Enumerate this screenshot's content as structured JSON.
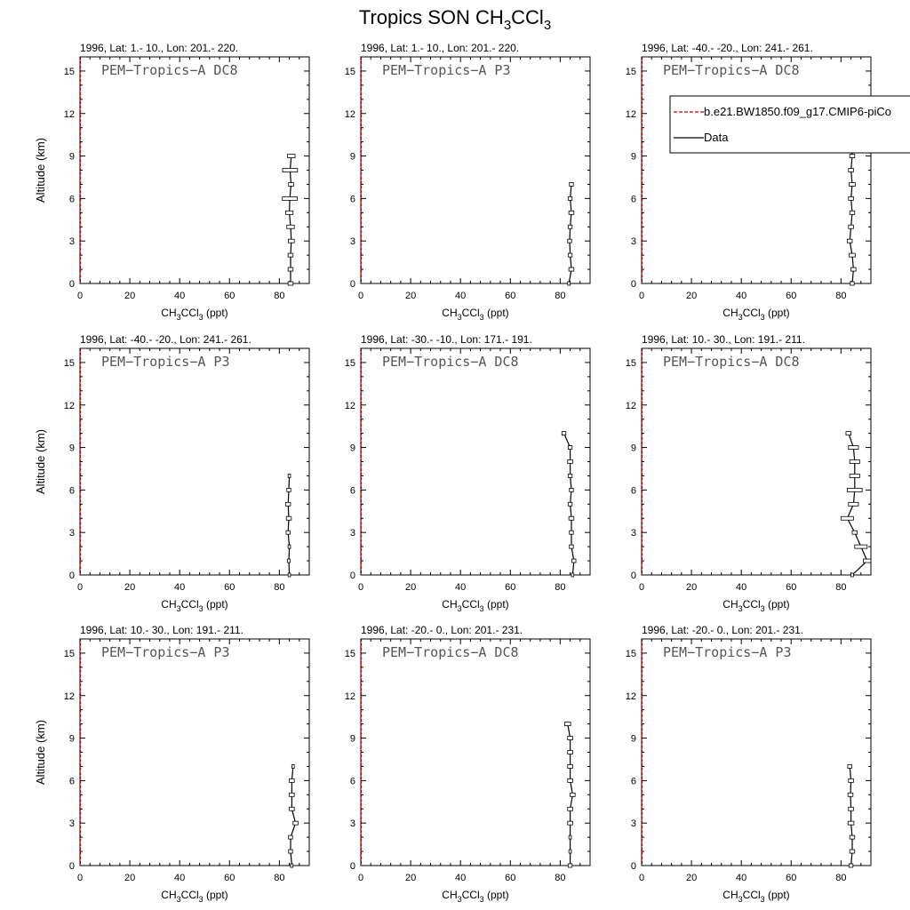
{
  "figure": {
    "title": "Tropics SON CH",
    "title_sub1": "3",
    "title_mid": "CCl",
    "title_sub2": "3"
  },
  "legend": {
    "panel_index": 2,
    "entries": [
      {
        "label": "b.e21.BW1850.f09_g17.CMIP6-piCo",
        "color": "#cc0000",
        "dash": true
      },
      {
        "label": "Data",
        "color": "#000000",
        "dash": false
      }
    ]
  },
  "axis": {
    "ylabel": "Altitude (km)",
    "xlabel_pre": "CH",
    "xlabel_sub1": "3",
    "xlabel_mid": "CCl",
    "xlabel_sub2": "3",
    "xlabel_post": " (ppt)"
  },
  "chart_data": [
    {
      "type": "line",
      "title": "1996, Lat: 1.- 10., Lon: 201.- 220.",
      "campaign": "PEM−Tropics−A DC8",
      "xlim": [
        0,
        92
      ],
      "ylim": [
        0,
        16
      ],
      "xticks": [
        0,
        20,
        40,
        60,
        80
      ],
      "yticks": [
        0,
        3,
        6,
        9,
        12,
        15
      ],
      "series": [
        {
          "name": "Data",
          "x": [
            84.5,
            84.5,
            84.5,
            84.8,
            84.5,
            84.0,
            84.2,
            84.7,
            84.3,
            84.8
          ],
          "y": [
            0,
            1,
            2,
            3,
            4,
            5,
            6,
            7,
            8,
            9
          ],
          "xerr": [
            1.0,
            1.0,
            1.0,
            1.2,
            1.5,
            1.5,
            3.0,
            1.0,
            3.0,
            1.5
          ]
        }
      ]
    },
    {
      "type": "line",
      "title": "1996, Lat: 1.- 10., Lon: 201.- 220.",
      "campaign": "PEM−Tropics−A P3",
      "xlim": [
        0,
        92
      ],
      "ylim": [
        0,
        16
      ],
      "xticks": [
        0,
        20,
        40,
        60,
        80
      ],
      "yticks": [
        0,
        3,
        6,
        9,
        12,
        15
      ],
      "series": [
        {
          "name": "Data",
          "x": [
            83.5,
            84.5,
            84.0,
            83.8,
            84.0,
            84.5,
            84.0,
            84.5
          ],
          "y": [
            0,
            1,
            2,
            3,
            4,
            5,
            6,
            7
          ],
          "xerr": [
            0.5,
            1.0,
            0.8,
            0.8,
            0.8,
            1.0,
            0.8,
            0.8
          ]
        }
      ]
    },
    {
      "type": "line",
      "title": "1996, Lat: -40.- -20., Lon: 241.- 261.",
      "campaign": "PEM−Tropics−A DC8",
      "xlim": [
        0,
        92
      ],
      "ylim": [
        0,
        16
      ],
      "xticks": [
        0,
        20,
        40,
        60,
        80
      ],
      "yticks": [
        0,
        3,
        6,
        9,
        12,
        15
      ],
      "series": [
        {
          "name": "Data",
          "x": [
            84.5,
            85.0,
            84.5,
            83.5,
            84.0,
            84.5,
            84.0,
            84.5,
            84.0,
            84.5,
            84.0
          ],
          "y": [
            0,
            1,
            2,
            3,
            4,
            5,
            6,
            7,
            8,
            9,
            10
          ],
          "xerr": [
            0.8,
            1.0,
            1.2,
            1.0,
            1.0,
            1.0,
            1.0,
            1.2,
            1.0,
            1.0,
            1.2
          ]
        }
      ]
    },
    {
      "type": "line",
      "title": "1996, Lat: -40.- -20., Lon: 241.- 261.",
      "campaign": "PEM−Tropics−A P3",
      "xlim": [
        0,
        92
      ],
      "ylim": [
        0,
        16
      ],
      "xticks": [
        0,
        20,
        40,
        60,
        80
      ],
      "yticks": [
        0,
        3,
        6,
        9,
        12,
        15
      ],
      "series": [
        {
          "name": "Data",
          "x": [
            84.0,
            83.8,
            84.0,
            83.5,
            83.8,
            83.5,
            83.8,
            84.0
          ],
          "y": [
            0,
            1,
            2,
            3,
            4,
            5,
            6,
            7
          ],
          "xerr": [
            0.5,
            0.5,
            0.5,
            0.8,
            1.0,
            1.0,
            0.8,
            0.5
          ]
        }
      ]
    },
    {
      "type": "line",
      "title": "1996, Lat: -30.- -10., Lon: 171.- 191.",
      "campaign": "PEM−Tropics−A DC8",
      "xlim": [
        0,
        92
      ],
      "ylim": [
        0,
        16
      ],
      "xticks": [
        0,
        20,
        40,
        60,
        80
      ],
      "yticks": [
        0,
        3,
        6,
        9,
        12,
        15
      ],
      "series": [
        {
          "name": "Data",
          "x": [
            85.0,
            85.5,
            84.5,
            84.5,
            84.5,
            84.0,
            84.5,
            84.0,
            84.0,
            84.0,
            81.5
          ],
          "y": [
            0,
            1,
            2,
            3,
            4,
            5,
            6,
            7,
            8,
            9,
            10
          ],
          "xerr": [
            0.5,
            0.8,
            0.8,
            0.8,
            1.0,
            0.8,
            0.8,
            0.8,
            1.0,
            0.8,
            0.8
          ]
        }
      ]
    },
    {
      "type": "line",
      "title": "1996, Lat: 10.- 30., Lon: 191.- 211.",
      "campaign": "PEM−Tropics−A DC8",
      "xlim": [
        0,
        92
      ],
      "ylim": [
        0,
        16
      ],
      "xticks": [
        0,
        20,
        40,
        60,
        80
      ],
      "yticks": [
        0,
        3,
        6,
        9,
        12,
        15
      ],
      "series": [
        {
          "name": "Data",
          "x": [
            84.5,
            90.5,
            88.0,
            85.5,
            82.5,
            85.0,
            85.5,
            85.5,
            85.5,
            85.0,
            83.0
          ],
          "y": [
            0,
            1,
            2,
            3,
            4,
            5,
            6,
            7,
            8,
            9,
            10
          ],
          "xerr": [
            0.5,
            1.5,
            2.5,
            1.0,
            2.5,
            2.0,
            3.0,
            2.0,
            2.0,
            2.0,
            1.0
          ]
        }
      ]
    },
    {
      "type": "line",
      "title": "1996, Lat: 10.- 30., Lon: 191.- 211.",
      "campaign": "PEM−Tropics−A P3",
      "xlim": [
        0,
        92
      ],
      "ylim": [
        0,
        16
      ],
      "xticks": [
        0,
        20,
        40,
        60,
        80
      ],
      "yticks": [
        0,
        3,
        6,
        9,
        12,
        15
      ],
      "series": [
        {
          "name": "Data",
          "x": [
            85.0,
            84.5,
            84.5,
            86.5,
            85.0,
            85.0,
            85.0,
            85.5
          ],
          "y": [
            0,
            1,
            2,
            3,
            4,
            5,
            6,
            7
          ],
          "xerr": [
            0.5,
            0.8,
            0.8,
            1.0,
            1.0,
            1.0,
            1.0,
            0.5
          ]
        }
      ]
    },
    {
      "type": "line",
      "title": "1996, Lat: -20.- 0., Lon: 201.- 231.",
      "campaign": "PEM−Tropics−A DC8",
      "xlim": [
        0,
        92
      ],
      "ylim": [
        0,
        16
      ],
      "xticks": [
        0,
        20,
        40,
        60,
        80
      ],
      "yticks": [
        0,
        3,
        6,
        9,
        12,
        15
      ],
      "series": [
        {
          "name": "Data",
          "x": [
            84.0,
            84.0,
            84.0,
            84.0,
            84.0,
            85.0,
            84.0,
            84.0,
            84.0,
            84.0,
            83.0
          ],
          "y": [
            0,
            1,
            2,
            3,
            4,
            5,
            6,
            7,
            8,
            9,
            10
          ],
          "xerr": [
            0.8,
            0.5,
            0.5,
            1.0,
            1.0,
            1.0,
            1.0,
            1.0,
            1.0,
            1.0,
            1.2
          ]
        }
      ]
    },
    {
      "type": "line",
      "title": "1996, Lat: -20.- 0., Lon: 201.- 231.",
      "campaign": "PEM−Tropics−A P3",
      "xlim": [
        0,
        92
      ],
      "ylim": [
        0,
        16
      ],
      "xticks": [
        0,
        20,
        40,
        60,
        80
      ],
      "yticks": [
        0,
        3,
        6,
        9,
        12,
        15
      ],
      "series": [
        {
          "name": "Data",
          "x": [
            84.0,
            84.5,
            84.5,
            84.0,
            84.0,
            83.8,
            84.0,
            83.5
          ],
          "y": [
            0,
            1,
            2,
            3,
            4,
            5,
            6,
            7
          ],
          "xerr": [
            0.8,
            1.0,
            1.0,
            1.2,
            1.0,
            1.0,
            1.0,
            0.8
          ]
        }
      ]
    }
  ]
}
